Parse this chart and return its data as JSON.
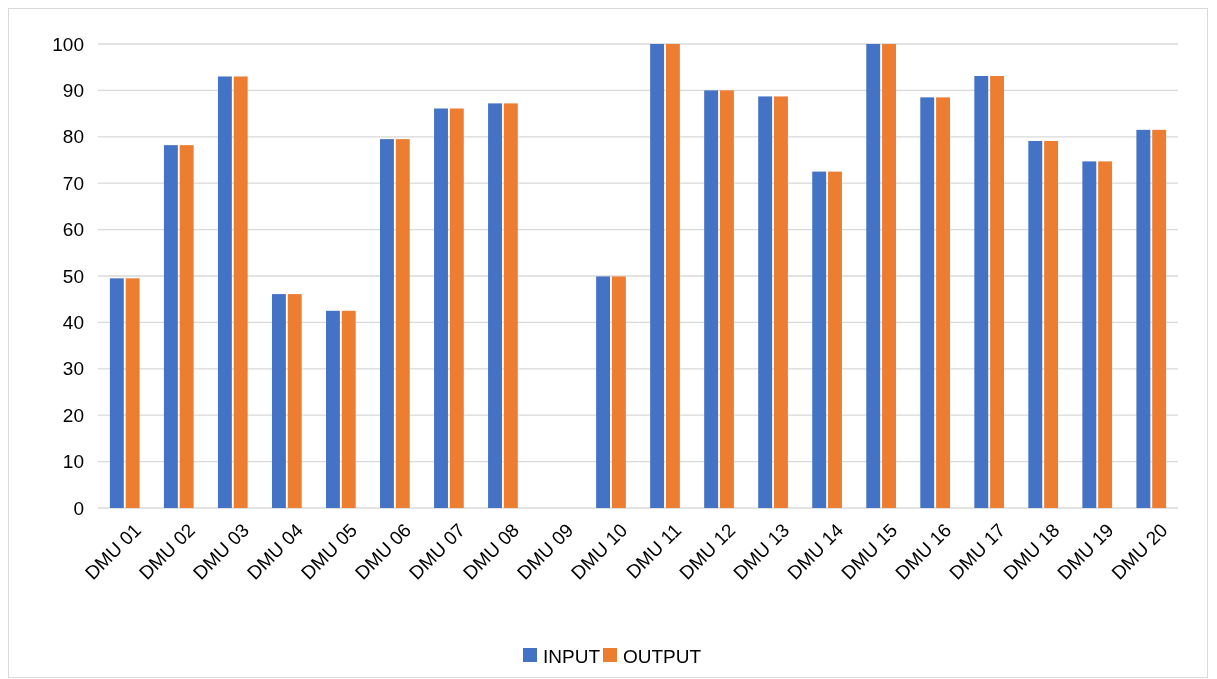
{
  "chart_data": {
    "type": "bar",
    "categories": [
      "DMU 01",
      "DMU 02",
      "DMU 03",
      "DMU 04",
      "DMU 05",
      "DMU 06",
      "DMU 07",
      "DMU 08",
      "DMU 09",
      "DMU 10",
      "DMU 11",
      "DMU 12",
      "DMU 13",
      "DMU 14",
      "DMU 15",
      "DMU 16",
      "DMU 17",
      "DMU 18",
      "DMU 19",
      "DMU 20"
    ],
    "series": [
      {
        "name": "INPUT",
        "color": "#4472c4",
        "values": [
          49.5,
          78.2,
          93.0,
          46.1,
          42.5,
          79.5,
          86.1,
          87.2,
          0,
          49.9,
          100,
          90,
          88.7,
          72.5,
          100,
          88.5,
          93.1,
          79.1,
          74.7,
          81.5
        ]
      },
      {
        "name": "OUTPUT",
        "color": "#ed7d31",
        "values": [
          49.5,
          78.2,
          93.0,
          46.1,
          42.5,
          79.5,
          86.1,
          87.2,
          0,
          49.9,
          100,
          90,
          88.7,
          72.5,
          100,
          88.5,
          93.1,
          79.1,
          74.7,
          81.5
        ]
      }
    ],
    "ylim": [
      0,
      100
    ],
    "yticks": [
      0,
      10,
      20,
      30,
      40,
      50,
      60,
      70,
      80,
      90,
      100
    ],
    "grid": "y",
    "legend": "bottom"
  }
}
